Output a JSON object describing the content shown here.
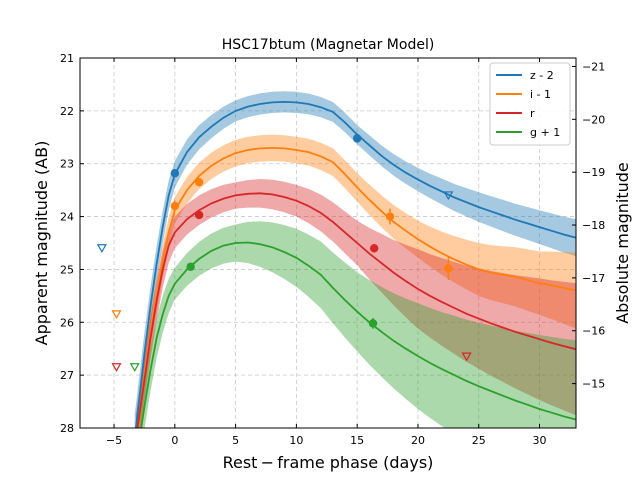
{
  "chart_data": {
    "type": "line",
    "title": "HSC17btum (Magnetar Model)",
    "xlabel": "Rest − frame phase (days)",
    "ylabel": "Apparent magnitude (AB)",
    "ylabel_right": "Absolute magnitude",
    "xlim": [
      -7.8,
      33
    ],
    "ylim": [
      28,
      21
    ],
    "ylim_right": [
      -14.16,
      -21.16
    ],
    "x_ticks": [
      -5,
      0,
      5,
      10,
      15,
      20,
      25,
      30
    ],
    "x_tick_labels": [
      "−5",
      "0",
      "5",
      "10",
      "15",
      "20",
      "25",
      "30"
    ],
    "y_ticks": [
      21,
      22,
      23,
      24,
      25,
      26,
      27,
      28
    ],
    "y_tick_labels": [
      "21",
      "22",
      "23",
      "24",
      "25",
      "26",
      "27",
      "28"
    ],
    "y_right_ticks": [
      -21,
      -20,
      -19,
      -18,
      -17,
      -16,
      -15
    ],
    "y_right_tick_labels": [
      "−21",
      "−20",
      "−19",
      "−18",
      "−17",
      "−16",
      "−15"
    ],
    "grid": true,
    "legend_position": "top-right",
    "series": [
      {
        "name": "z - 2",
        "color": "#1f77b4",
        "model": [
          [
            -3.3,
            28.2
          ],
          [
            -2.5,
            26.6
          ],
          [
            -2.0,
            25.7
          ],
          [
            -1.5,
            24.9
          ],
          [
            -1,
            24.2
          ],
          [
            -0.5,
            23.6
          ],
          [
            0,
            23.2
          ],
          [
            1,
            22.78
          ],
          [
            2,
            22.5
          ],
          [
            3,
            22.3
          ],
          [
            4,
            22.13
          ],
          [
            5,
            22.0
          ],
          [
            6,
            21.92
          ],
          [
            7,
            21.87
          ],
          [
            8,
            21.84
          ],
          [
            9,
            21.83
          ],
          [
            10,
            21.84
          ],
          [
            11,
            21.87
          ],
          [
            12,
            21.93
          ],
          [
            13,
            22.02
          ],
          [
            14,
            22.22
          ],
          [
            15,
            22.45
          ],
          [
            16,
            22.65
          ],
          [
            17,
            22.85
          ],
          [
            18,
            23.02
          ],
          [
            19,
            23.17
          ],
          [
            20,
            23.3
          ],
          [
            21,
            23.42
          ],
          [
            22,
            23.53
          ],
          [
            23,
            23.64
          ],
          [
            24,
            23.73
          ],
          [
            25,
            23.82
          ],
          [
            26,
            23.9
          ],
          [
            27,
            23.98
          ],
          [
            28,
            24.06
          ],
          [
            29,
            24.13
          ],
          [
            30,
            24.2
          ],
          [
            31,
            24.27
          ],
          [
            32,
            24.34
          ],
          [
            33,
            24.4
          ]
        ],
        "band_halfwidth": [
          [
            -3.3,
            0.45
          ],
          [
            0,
            0.25
          ],
          [
            5,
            0.2
          ],
          [
            10,
            0.2
          ],
          [
            15,
            0.18
          ],
          [
            20,
            0.22
          ],
          [
            25,
            0.28
          ],
          [
            30,
            0.32
          ],
          [
            33,
            0.35
          ]
        ],
        "detections": [
          [
            0,
            23.18,
            0.05
          ],
          [
            15,
            22.52,
            0.08
          ]
        ],
        "upper_limits": [
          [
            -6.0,
            24.6
          ],
          [
            22.5,
            23.6
          ]
        ]
      },
      {
        "name": "i - 1",
        "color": "#ff7f0e",
        "model": [
          [
            -3.1,
            28.2
          ],
          [
            -2.5,
            27.0
          ],
          [
            -2.0,
            26.2
          ],
          [
            -1.5,
            25.5
          ],
          [
            -1,
            24.85
          ],
          [
            -0.5,
            24.3
          ],
          [
            0,
            23.88
          ],
          [
            1,
            23.5
          ],
          [
            2,
            23.23
          ],
          [
            3,
            23.04
          ],
          [
            4,
            22.9
          ],
          [
            5,
            22.8
          ],
          [
            6,
            22.74
          ],
          [
            7,
            22.71
          ],
          [
            8,
            22.7
          ],
          [
            9,
            22.71
          ],
          [
            10,
            22.74
          ],
          [
            11,
            22.78
          ],
          [
            12,
            22.86
          ],
          [
            13,
            22.97
          ],
          [
            14,
            23.2
          ],
          [
            15,
            23.45
          ],
          [
            16,
            23.68
          ],
          [
            17,
            23.9
          ],
          [
            18,
            24.1
          ],
          [
            19,
            24.27
          ],
          [
            20,
            24.43
          ],
          [
            21,
            24.57
          ],
          [
            22,
            24.7
          ],
          [
            23,
            24.81
          ],
          [
            24,
            24.91
          ],
          [
            25,
            25.0
          ],
          [
            26,
            25.06
          ],
          [
            27,
            25.1
          ],
          [
            28,
            25.14
          ],
          [
            29,
            25.2
          ],
          [
            30,
            25.26
          ],
          [
            31,
            25.3
          ],
          [
            32,
            25.35
          ],
          [
            33,
            25.4
          ]
        ],
        "band_halfwidth": [
          [
            -3.1,
            0.45
          ],
          [
            0,
            0.25
          ],
          [
            5,
            0.25
          ],
          [
            10,
            0.25
          ],
          [
            15,
            0.27
          ],
          [
            20,
            0.35
          ],
          [
            25,
            0.5
          ],
          [
            30,
            0.6
          ],
          [
            33,
            0.72
          ]
        ],
        "detections": [
          [
            0,
            23.8,
            0.1
          ],
          [
            2,
            23.35,
            0.08
          ],
          [
            17.7,
            24.0,
            0.15
          ],
          [
            22.5,
            24.98,
            0.22
          ]
        ],
        "upper_limits": [
          [
            -4.8,
            25.85
          ]
        ]
      },
      {
        "name": "r",
        "color": "#d62728",
        "model": [
          [
            -3.2,
            28.2
          ],
          [
            -2.5,
            27.1
          ],
          [
            -2.0,
            26.3
          ],
          [
            -1.5,
            25.6
          ],
          [
            -1,
            25.0
          ],
          [
            -0.5,
            24.55
          ],
          [
            0,
            24.3
          ],
          [
            1,
            24.05
          ],
          [
            2,
            23.88
          ],
          [
            3,
            23.75
          ],
          [
            4,
            23.66
          ],
          [
            5,
            23.6
          ],
          [
            6,
            23.57
          ],
          [
            7,
            23.56
          ],
          [
            8,
            23.58
          ],
          [
            9,
            23.63
          ],
          [
            10,
            23.7
          ],
          [
            11,
            23.8
          ],
          [
            12,
            23.93
          ],
          [
            13,
            24.1
          ],
          [
            14,
            24.3
          ],
          [
            15,
            24.5
          ],
          [
            16,
            24.7
          ],
          [
            17,
            24.88
          ],
          [
            18,
            25.06
          ],
          [
            19,
            25.22
          ],
          [
            20,
            25.37
          ],
          [
            21,
            25.5
          ],
          [
            22,
            25.62
          ],
          [
            23,
            25.73
          ],
          [
            24,
            25.84
          ],
          [
            25,
            25.93
          ],
          [
            26,
            26.02
          ],
          [
            27,
            26.1
          ],
          [
            28,
            26.18
          ],
          [
            29,
            26.25
          ],
          [
            30,
            26.32
          ],
          [
            31,
            26.39
          ],
          [
            32,
            26.45
          ],
          [
            33,
            26.51
          ]
        ],
        "band_halfwidth": [
          [
            -3.2,
            0.45
          ],
          [
            0,
            0.3
          ],
          [
            5,
            0.25
          ],
          [
            10,
            0.3
          ],
          [
            15,
            0.42
          ],
          [
            20,
            0.75
          ],
          [
            25,
            0.95
          ],
          [
            30,
            1.15
          ],
          [
            33,
            1.25
          ]
        ],
        "detections": [
          [
            2,
            23.97,
            0.06
          ],
          [
            16.4,
            24.6,
            0.08
          ]
        ],
        "upper_limits": [
          [
            -4.8,
            26.85
          ],
          [
            24,
            26.65
          ]
        ]
      },
      {
        "name": "g + 1",
        "color": "#2ca02c",
        "model": [
          [
            -2.9,
            28.2
          ],
          [
            -2.5,
            27.6
          ],
          [
            -2.0,
            26.9
          ],
          [
            -1.5,
            26.3
          ],
          [
            -1,
            25.85
          ],
          [
            -0.5,
            25.5
          ],
          [
            0,
            25.27
          ],
          [
            1,
            25.0
          ],
          [
            2,
            24.8
          ],
          [
            3,
            24.65
          ],
          [
            4,
            24.55
          ],
          [
            5,
            24.5
          ],
          [
            6,
            24.49
          ],
          [
            7,
            24.52
          ],
          [
            8,
            24.58
          ],
          [
            9,
            24.67
          ],
          [
            10,
            24.78
          ],
          [
            11,
            24.93
          ],
          [
            12,
            25.1
          ],
          [
            13,
            25.35
          ],
          [
            14,
            25.58
          ],
          [
            15,
            25.8
          ],
          [
            16,
            26.0
          ],
          [
            17,
            26.18
          ],
          [
            18,
            26.35
          ],
          [
            19,
            26.5
          ],
          [
            20,
            26.64
          ],
          [
            21,
            26.77
          ],
          [
            22,
            26.89
          ],
          [
            23,
            27.0
          ],
          [
            24,
            27.11
          ],
          [
            25,
            27.21
          ],
          [
            26,
            27.3
          ],
          [
            27,
            27.39
          ],
          [
            28,
            27.48
          ],
          [
            29,
            27.56
          ],
          [
            30,
            27.64
          ],
          [
            31,
            27.71
          ],
          [
            32,
            27.78
          ],
          [
            33,
            27.84
          ]
        ],
        "band_halfwidth": [
          [
            -2.9,
            0.45
          ],
          [
            0,
            0.3
          ],
          [
            5,
            0.35
          ],
          [
            10,
            0.55
          ],
          [
            15,
            0.75
          ],
          [
            20,
            1.0
          ],
          [
            25,
            1.2
          ],
          [
            30,
            1.4
          ],
          [
            33,
            1.5
          ]
        ],
        "detections": [
          [
            1.3,
            24.95,
            0.06
          ],
          [
            16.3,
            26.02,
            0.1
          ]
        ],
        "upper_limits": [
          [
            -3.3,
            26.85
          ]
        ]
      }
    ]
  }
}
